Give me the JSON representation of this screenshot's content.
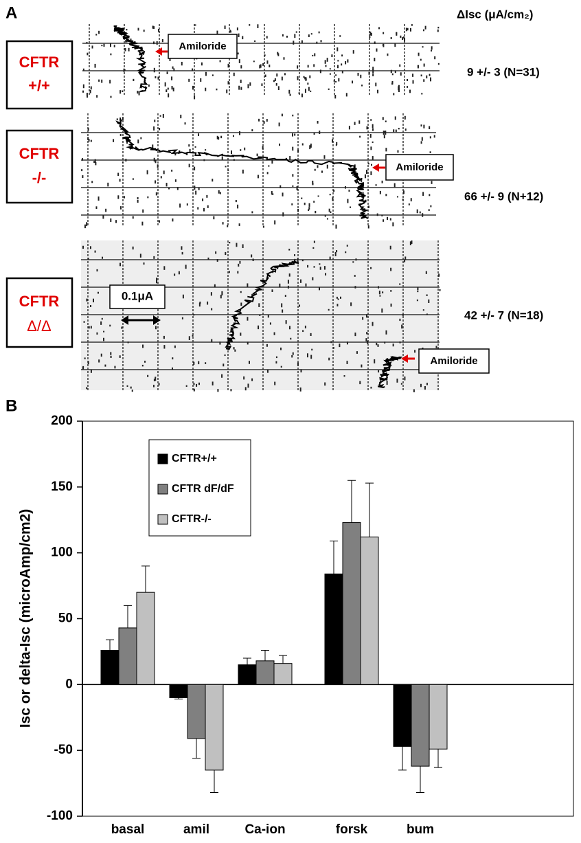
{
  "panel_a": {
    "label": "A",
    "column_header": "ΔIsc (μA/cm₂)",
    "rows": [
      {
        "line1": "CFTR",
        "line2": "+/+",
        "marker": "Amiloride",
        "stat": "9 +/- 3 (N=31)"
      },
      {
        "line1": "CFTR",
        "line2": "-/-",
        "marker": "Amiloride",
        "stat": "66 +/- 9 (N+12)"
      },
      {
        "line1": "CFTR",
        "line2": "Δ/Δ",
        "marker": "Amiloride",
        "stat": "42 +/- 7 (N=18)",
        "scale": "0.1μA"
      }
    ]
  },
  "chart_data": {
    "type": "bar",
    "panel_label": "B",
    "y_label": "Isc or delta-Isc (microAmp/cm2)",
    "categories": [
      "basal",
      "amil",
      "Ca-ion",
      "forsk",
      "bum"
    ],
    "series": [
      {
        "name": "CFTR+/+",
        "color": "#000000",
        "values": [
          26,
          -10,
          15,
          84,
          -47
        ],
        "errors": [
          8,
          1,
          5,
          25,
          18
        ]
      },
      {
        "name": "CFTR dF/dF",
        "color": "#808080",
        "values": [
          43,
          -41,
          18,
          123,
          -62
        ],
        "errors": [
          17,
          15,
          8,
          32,
          20
        ]
      },
      {
        "name": "CFTR-/-",
        "color": "#c0c0c0",
        "values": [
          70,
          -65,
          16,
          112,
          -49
        ],
        "errors": [
          20,
          17,
          6,
          41,
          14
        ]
      }
    ],
    "ylim": [
      -100,
      200
    ],
    "yticks": [
      -100,
      -50,
      0,
      50,
      100,
      150,
      200
    ],
    "legend": "upper-left"
  }
}
